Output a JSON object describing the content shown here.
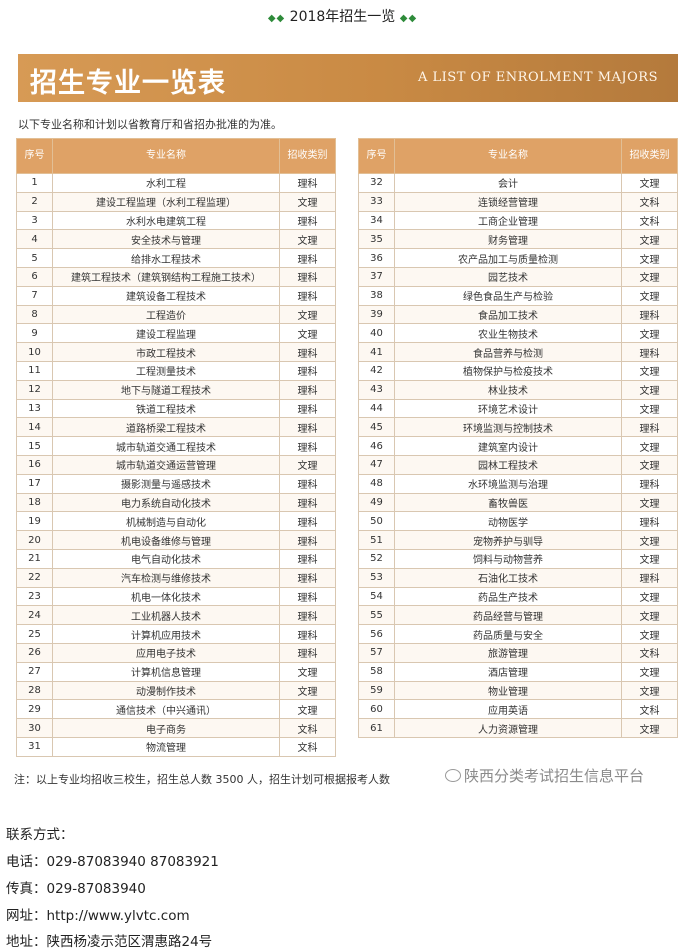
{
  "header": {
    "diamond_left": "◆◆",
    "title": "2018年招生一览",
    "diamond_right": "◆◆"
  },
  "banner": {
    "title_cn": "招生专业一览表",
    "title_en": "A LIST OF ENROLMENT MAJORS"
  },
  "intro": "以下专业名称和计划以省教育厅和省招办批准的为准。",
  "columns": {
    "no": "序号",
    "name": "专业名称",
    "type": "招收类别"
  },
  "majors_left": [
    [
      "1",
      "水利工程",
      "理科"
    ],
    [
      "2",
      "建设工程监理（水利工程监理）",
      "文理"
    ],
    [
      "3",
      "水利水电建筑工程",
      "理科"
    ],
    [
      "4",
      "安全技术与管理",
      "文理"
    ],
    [
      "5",
      "给排水工程技术",
      "理科"
    ],
    [
      "6",
      "建筑工程技术（建筑钢结构工程施工技术）",
      "理科"
    ],
    [
      "7",
      "建筑设备工程技术",
      "理科"
    ],
    [
      "8",
      "工程造价",
      "文理"
    ],
    [
      "9",
      "建设工程监理",
      "文理"
    ],
    [
      "10",
      "市政工程技术",
      "理科"
    ],
    [
      "11",
      "工程测量技术",
      "理科"
    ],
    [
      "12",
      "地下与隧道工程技术",
      "理科"
    ],
    [
      "13",
      "铁道工程技术",
      "理科"
    ],
    [
      "14",
      "道路桥梁工程技术",
      "理科"
    ],
    [
      "15",
      "城市轨道交通工程技术",
      "理科"
    ],
    [
      "16",
      "城市轨道交通运营管理",
      "文理"
    ],
    [
      "17",
      "摄影测量与遥感技术",
      "理科"
    ],
    [
      "18",
      "电力系统自动化技术",
      "理科"
    ],
    [
      "19",
      "机械制造与自动化",
      "理科"
    ],
    [
      "20",
      "机电设备维修与管理",
      "理科"
    ],
    [
      "21",
      "电气自动化技术",
      "理科"
    ],
    [
      "22",
      "汽车检测与维修技术",
      "理科"
    ],
    [
      "23",
      "机电一体化技术",
      "理科"
    ],
    [
      "24",
      "工业机器人技术",
      "理科"
    ],
    [
      "25",
      "计算机应用技术",
      "理科"
    ],
    [
      "26",
      "应用电子技术",
      "理科"
    ],
    [
      "27",
      "计算机信息管理",
      "文理"
    ],
    [
      "28",
      "动漫制作技术",
      "文理"
    ],
    [
      "29",
      "通信技术（中兴通讯）",
      "文理"
    ],
    [
      "30",
      "电子商务",
      "文科"
    ],
    [
      "31",
      "物流管理",
      "文科"
    ]
  ],
  "majors_right": [
    [
      "32",
      "会计",
      "文理"
    ],
    [
      "33",
      "连锁经营管理",
      "文科"
    ],
    [
      "34",
      "工商企业管理",
      "文科"
    ],
    [
      "35",
      "财务管理",
      "文理"
    ],
    [
      "36",
      "农产品加工与质量检测",
      "文理"
    ],
    [
      "37",
      "园艺技术",
      "文理"
    ],
    [
      "38",
      "绿色食品生产与检验",
      "文理"
    ],
    [
      "39",
      "食品加工技术",
      "理科"
    ],
    [
      "40",
      "农业生物技术",
      "文理"
    ],
    [
      "41",
      "食品营养与检测",
      "理科"
    ],
    [
      "42",
      "植物保护与检疫技术",
      "文理"
    ],
    [
      "43",
      "林业技术",
      "文理"
    ],
    [
      "44",
      "环境艺术设计",
      "文理"
    ],
    [
      "45",
      "环境监测与控制技术",
      "理科"
    ],
    [
      "46",
      "建筑室内设计",
      "文理"
    ],
    [
      "47",
      "园林工程技术",
      "文理"
    ],
    [
      "48",
      "水环境监测与治理",
      "理科"
    ],
    [
      "49",
      "畜牧兽医",
      "文理"
    ],
    [
      "50",
      "动物医学",
      "理科"
    ],
    [
      "51",
      "宠物养护与驯导",
      "文理"
    ],
    [
      "52",
      "饲料与动物营养",
      "文理"
    ],
    [
      "53",
      "石油化工技术",
      "理科"
    ],
    [
      "54",
      "药品生产技术",
      "文理"
    ],
    [
      "55",
      "药品经营与管理",
      "文理"
    ],
    [
      "56",
      "药品质量与安全",
      "文理"
    ],
    [
      "57",
      "旅游管理",
      "文科"
    ],
    [
      "58",
      "酒店管理",
      "文理"
    ],
    [
      "59",
      "物业管理",
      "文理"
    ],
    [
      "60",
      "应用英语",
      "文科"
    ],
    [
      "61",
      "人力资源管理",
      "文理"
    ]
  ],
  "note": "注：以上专业均招收三校生，招生总人数 3500 人，招生计划可根据报考人数",
  "watermark": "陕西分类考试招生信息平台",
  "contact": {
    "heading": "联系方式：",
    "phone": "电话：029-87083940  87083921",
    "fax": "传真：029-87083940",
    "website": "网址：http://www.ylvtc.com",
    "address": "地址：陕西杨凌示范区渭惠路24号"
  }
}
